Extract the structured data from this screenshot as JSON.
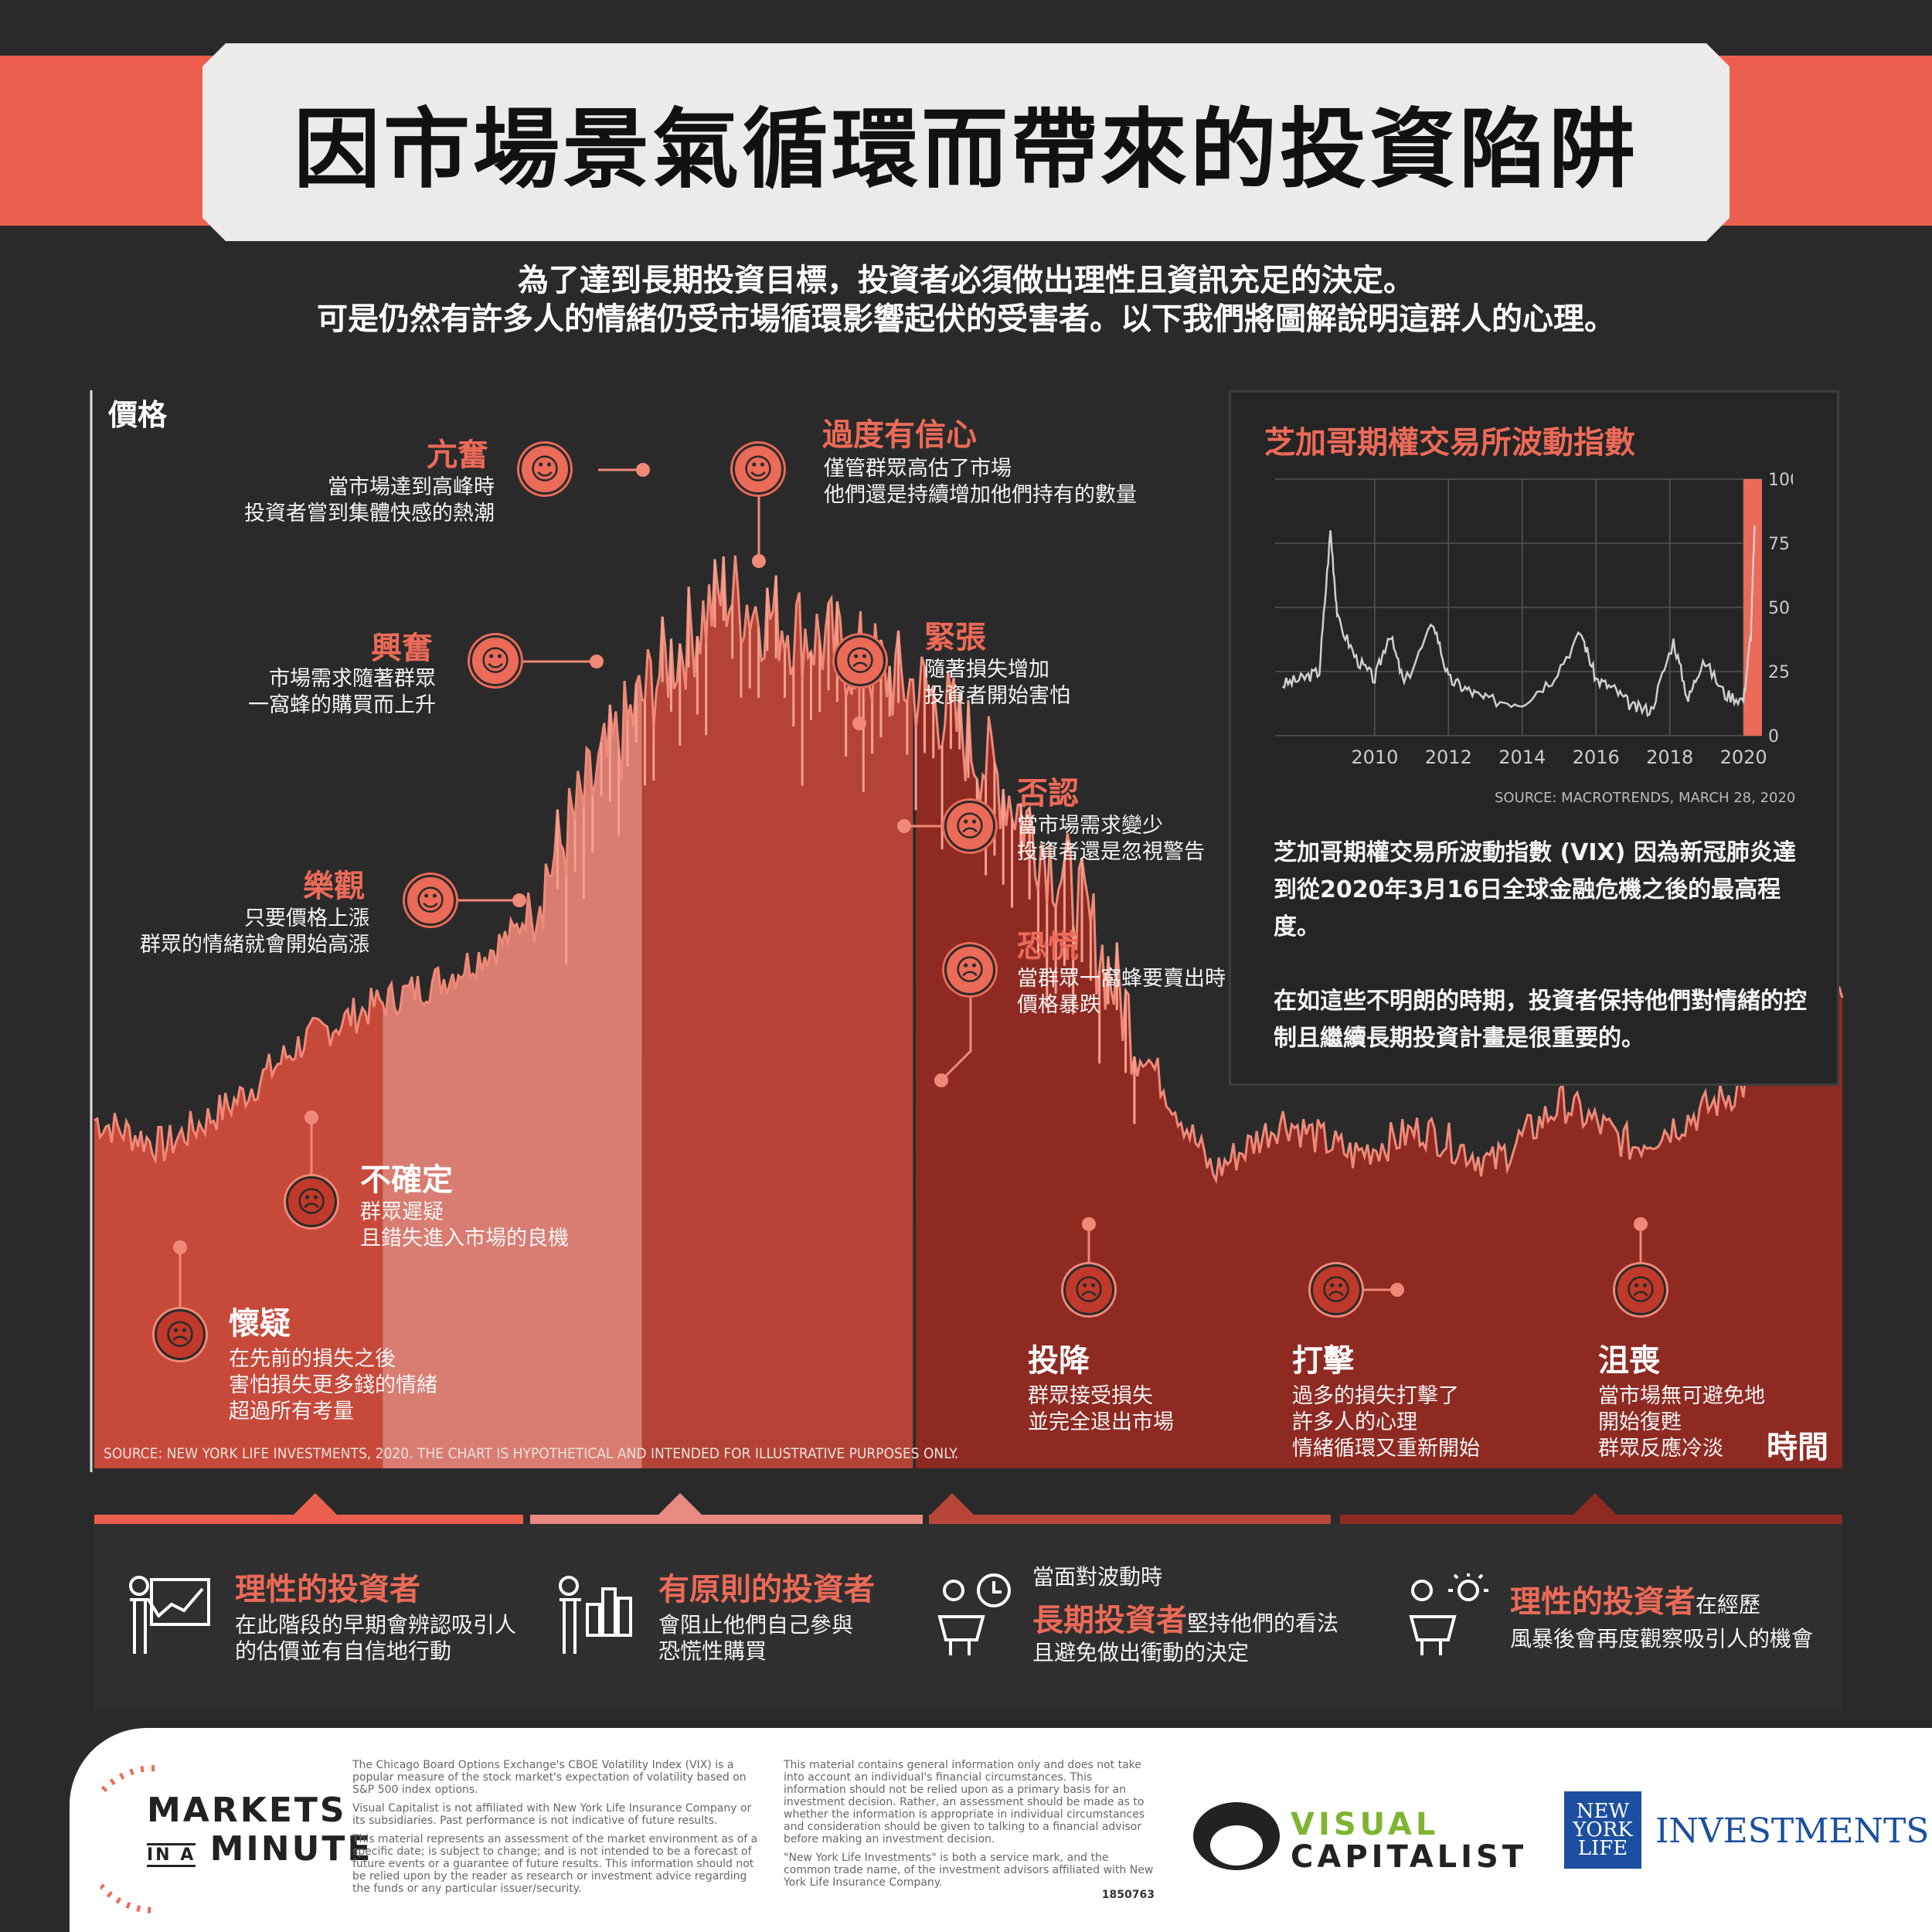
{
  "title": {
    "regular": "因市場景氣循環而帶來的",
    "bold": "投資陷阱"
  },
  "intro": {
    "line1": "為了達到長期投資目標，投資者必須做出理性且資訊充足的決定。",
    "line2": "可是仍然有許多人的情緒仍受市場循環影響起伏的受害者。以下我們將圖解說明這群人的心理。"
  },
  "axes": {
    "y_label": "價格",
    "x_label": "時間"
  },
  "main_source": "SOURCE: NEW YORK LIFE INVESTMENTS, 2020. THE CHART IS HYPOTHETICAL AND INTENDED FOR ILLUSTRATIVE PURPOSES ONLY.",
  "stages": [
    {
      "key": "doubt",
      "title": "懷疑",
      "desc": [
        "在先前的損失之後",
        "害怕損失更多錢的情緒",
        "超過所有考量"
      ],
      "icon": "worried-face-icon"
    },
    {
      "key": "uncertainty",
      "title": "不確定",
      "desc": [
        "群眾遲疑",
        "且錯失進入市場的良機"
      ],
      "icon": "confused-face-icon"
    },
    {
      "key": "optimism",
      "title": "樂觀",
      "desc": [
        "只要價格上漲",
        "群眾的情緒就會開始高漲"
      ],
      "icon": "smile-face-icon"
    },
    {
      "key": "excitement",
      "title": "興奮",
      "desc": [
        "市場需求隨著群眾",
        "一窩蜂的購買而上升"
      ],
      "icon": "money-face-icon"
    },
    {
      "key": "euphoria",
      "title": "亢奮",
      "desc": [
        "當市場達到高峰時",
        "投資者嘗到集體快感的熱潮"
      ],
      "icon": "star-eyes-icon"
    },
    {
      "key": "overconfidence",
      "title": "過度有信心",
      "desc": [
        "僅管群眾高估了市場",
        "他們還是持續增加他們持有的數量"
      ],
      "icon": "sunglasses-face-icon"
    },
    {
      "key": "anxiety",
      "title": "緊張",
      "desc": [
        "隨著損失增加",
        "投資者開始害怕"
      ],
      "icon": "frown-face-icon"
    },
    {
      "key": "denial",
      "title": "否認",
      "desc": [
        "當市場需求變少",
        "投資者還是忽視警告"
      ],
      "icon": "unamused-face-icon"
    },
    {
      "key": "panic",
      "title": "恐慌",
      "desc": [
        "當群眾一窩蜂要賣出時",
        "價格暴跌"
      ],
      "icon": "fearful-face-icon"
    },
    {
      "key": "capitulation",
      "title": "投降",
      "desc": [
        "群眾接受損失",
        "並完全退出市場"
      ],
      "icon": "crying-face-icon"
    },
    {
      "key": "anger",
      "title": "打擊",
      "desc": [
        "過多的損失打擊了",
        "許多人的心理",
        "情緒循環又重新開始"
      ],
      "icon": "angry-face-icon"
    },
    {
      "key": "depression",
      "title": "沮喪",
      "desc": [
        "當市場無可避免地",
        "開始復甦",
        "群眾反應冷淡"
      ],
      "icon": "sad-face-icon"
    }
  ],
  "vix": {
    "title": "芝加哥期權交易所波動指數",
    "source": "SOURCE: MACROTRENDS, MARCH 28, 2020",
    "paragraph1": "芝加哥期權交易所波動指數 (VIX) 因為新冠肺炎達到從2020年3月16日全球金融危機之後的最高程度。",
    "paragraph2": "在如這些不明朗的時期，投資者保持他們對情緒的控制且繼續長期投資計畫是很重要的。"
  },
  "chart_data": [
    {
      "type": "area",
      "title": "",
      "xlabel": "時間",
      "ylabel": "價格",
      "note": "hypothetical illustrative market cycle",
      "x": [
        0,
        4,
        8,
        12,
        16,
        20,
        24,
        28,
        32,
        36,
        40,
        44,
        48,
        52,
        56,
        60,
        64,
        68,
        72,
        76,
        80,
        84,
        88,
        92,
        96,
        100
      ],
      "y": [
        22,
        19,
        24,
        31,
        35,
        38,
        43,
        58,
        72,
        82,
        78,
        74,
        70,
        60,
        48,
        30,
        16,
        22,
        18,
        21,
        17,
        24,
        19,
        23,
        28,
        36
      ]
    },
    {
      "type": "line",
      "title": "芝加哥期權交易所波動指數",
      "x": [
        2007.5,
        2008.0,
        2008.5,
        2008.8,
        2009.0,
        2009.5,
        2010.0,
        2010.4,
        2010.8,
        2011.6,
        2012.0,
        2012.5,
        2013.0,
        2014.0,
        2014.8,
        2015.6,
        2016.0,
        2016.5,
        2017.0,
        2017.5,
        2018.1,
        2018.5,
        2018.9,
        2019.5,
        2020.0,
        2020.2,
        2020.3
      ],
      "y": [
        20,
        22,
        25,
        80,
        45,
        30,
        22,
        40,
        20,
        44,
        22,
        18,
        14,
        13,
        22,
        40,
        22,
        18,
        11,
        10,
        37,
        14,
        30,
        16,
        14,
        40,
        82
      ],
      "xticks": [
        "2010",
        "2012",
        "2014",
        "2016",
        "2018",
        "2020"
      ],
      "yticks": [
        "0",
        "25",
        "50",
        "75",
        "100"
      ],
      "ylim": [
        0,
        100
      ]
    }
  ],
  "investors": [
    {
      "pre": "",
      "title": "理性的投資者",
      "suffix": "",
      "desc": [
        "在此階段的早期會辨認吸引人",
        "的估價並有自信地行動"
      ]
    },
    {
      "pre": "",
      "title": "有原則的投資者",
      "suffix": "",
      "desc": [
        "會阻止他們自己參與",
        "恐慌性購買"
      ]
    },
    {
      "pre": "當面對波動時",
      "title": "長期投資者",
      "suffix": "堅持他們的看法",
      "desc": [
        "且避免做出衝動的決定"
      ]
    },
    {
      "pre": "",
      "title": "理性的投資者",
      "suffix": "在經歷",
      "desc": [
        "風暴後會再度觀察吸引人的機會"
      ]
    }
  ],
  "footer": {
    "logo_markets": [
      "MARKETS",
      "IN A",
      "MINUTE"
    ],
    "fine1": "The Chicago Board Options Exchange's CBOE Volatility Index (VIX) is a popular measure of the stock market's expectation of volatility based on S&P 500 index options.",
    "fine2": "Visual Capitalist is not affiliated with New York Life Insurance Company or its subsidiaries. Past performance is not indicative of future results.",
    "fine3": "This material represents an assessment of the market environment as of a specific date; is subject to change; and is not intended to be a forecast of future events or a guarantee of future results. This information should not be relied upon by the reader as research or investment advice regarding the funds or any particular issuer/security.",
    "fine4": "This material contains general information only and does not take into account an individual's financial circumstances. This information should not be relied upon as a primary basis for an investment decision. Rather, an assessment should be made as to whether the information is appropriate in individual circumstances and consideration should be given to talking to a financial advisor before making an investment decision.",
    "fine5": "\"New York Life Investments\" is both a service mark, and the common trade name, of the investment advisors affiliated with New York Life Insurance Company.",
    "code": "1850763",
    "vc_line1": "VISUAL",
    "vc_line2": "CAPITALIST",
    "ny_logo": [
      "NEW",
      "YORK",
      "LIFE"
    ],
    "ny_investments": "INVESTMENTS"
  },
  "colors": {
    "accent": "#ec6a58",
    "band": "#ec5f4e",
    "zone1": "#c7493a",
    "zone2": "#d97d72",
    "zone3": "#b34336",
    "zone4": "#8e2a22",
    "bg": "#2a2a2a"
  }
}
